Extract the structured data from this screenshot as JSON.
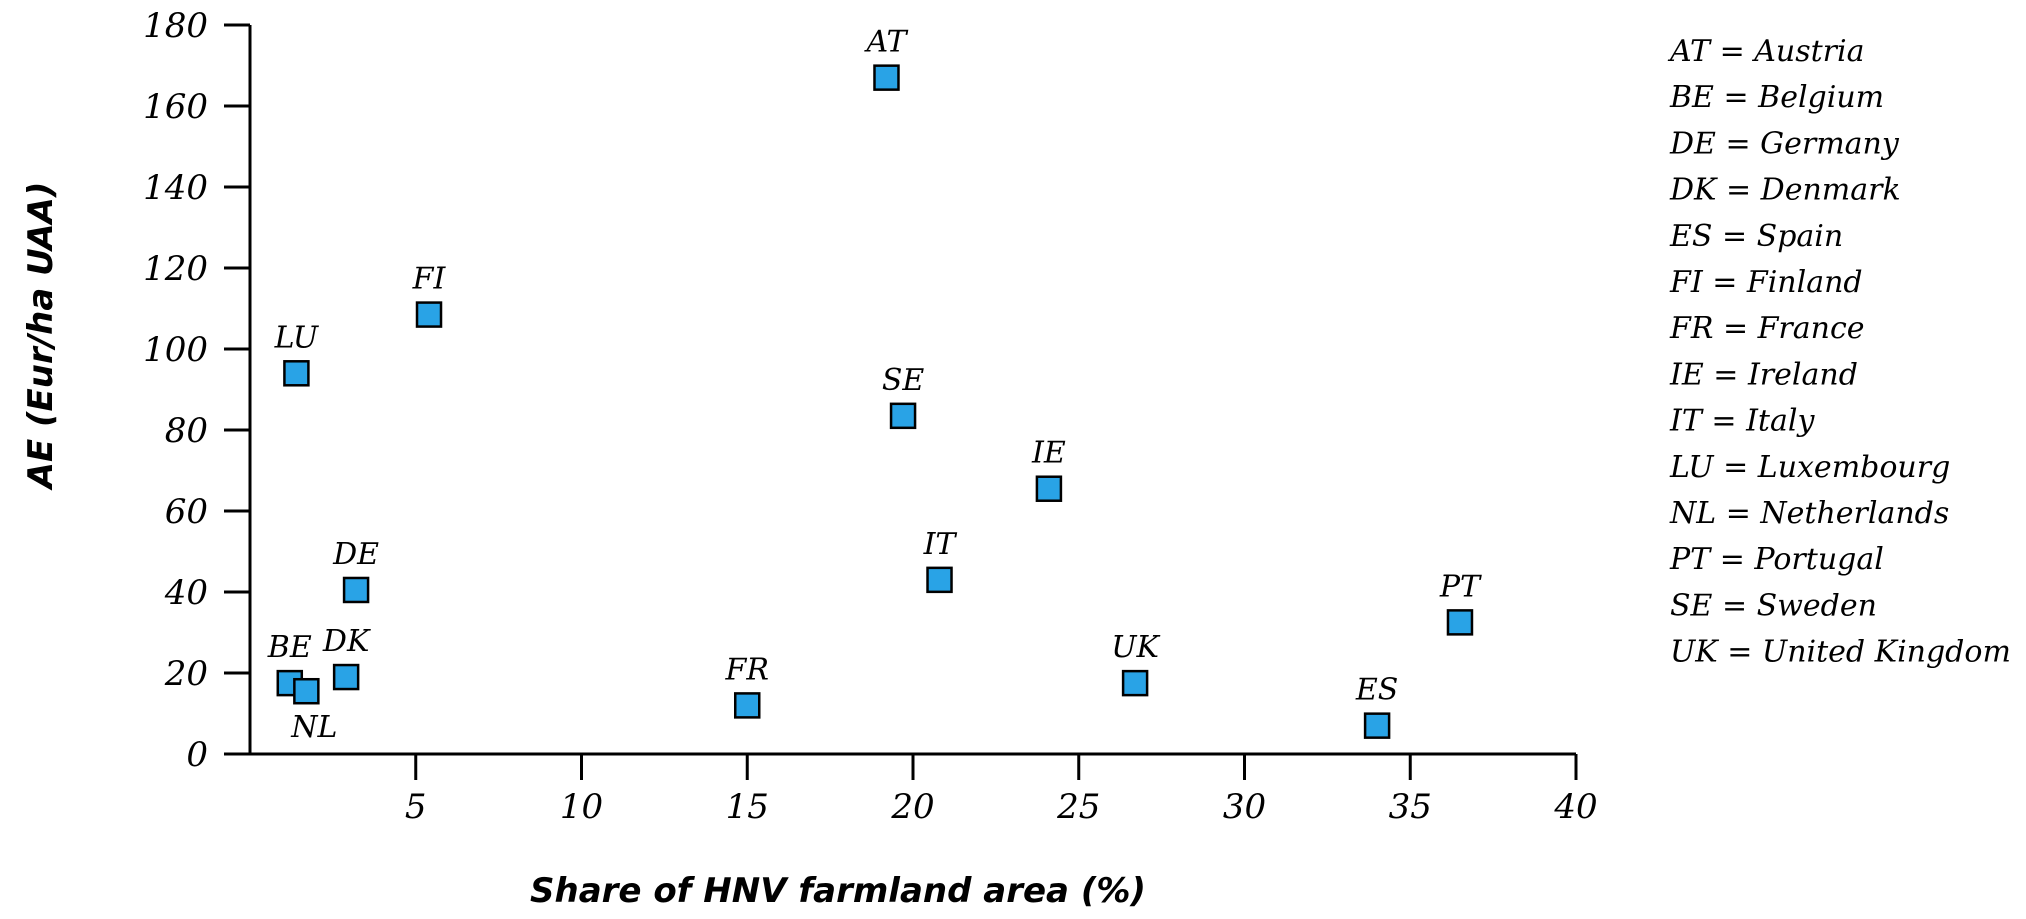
{
  "chart_data": {
    "type": "scatter",
    "xlabel": "Share of HNV farmland area (%)",
    "ylabel": "AE (Eur/ha UAA)",
    "xlim": [
      0,
      40
    ],
    "ylim": [
      0,
      180
    ],
    "x_ticks": [
      5,
      10,
      15,
      20,
      25,
      30,
      35,
      40
    ],
    "y_ticks": [
      0,
      20,
      40,
      60,
      80,
      100,
      120,
      140,
      160,
      180
    ],
    "grid": false,
    "legend_placement": "right",
    "marker_color": "#29a3e6",
    "points": [
      {
        "label": "AT",
        "x": 19.2,
        "y": 167,
        "label_pos": "above"
      },
      {
        "label": "FI",
        "x": 5.4,
        "y": 108.5,
        "label_pos": "above"
      },
      {
        "label": "LU",
        "x": 1.4,
        "y": 94,
        "label_pos": "above"
      },
      {
        "label": "SE",
        "x": 19.7,
        "y": 83.5,
        "label_pos": "above"
      },
      {
        "label": "IE",
        "x": 24.1,
        "y": 65.5,
        "label_pos": "above"
      },
      {
        "label": "IT",
        "x": 20.8,
        "y": 43,
        "label_pos": "above"
      },
      {
        "label": "DE",
        "x": 3.2,
        "y": 40.5,
        "label_pos": "above"
      },
      {
        "label": "PT",
        "x": 36.5,
        "y": 32.5,
        "label_pos": "above"
      },
      {
        "label": "DK",
        "x": 2.9,
        "y": 19,
        "label_pos": "above"
      },
      {
        "label": "BE",
        "x": 1.2,
        "y": 17.5,
        "label_pos": "above"
      },
      {
        "label": "NL",
        "x": 1.7,
        "y": 15.5,
        "label_pos": "below"
      },
      {
        "label": "UK",
        "x": 26.7,
        "y": 17.5,
        "label_pos": "above"
      },
      {
        "label": "FR",
        "x": 15.0,
        "y": 12,
        "label_pos": "above"
      },
      {
        "label": "ES",
        "x": 34.0,
        "y": 7,
        "label_pos": "above"
      }
    ],
    "legend": [
      "AT = Austria",
      "BE = Belgium",
      "DE = Germany",
      "DK = Denmark",
      "ES = Spain",
      "FI = Finland",
      "FR = France",
      "IE = Ireland",
      "IT = Italy",
      "LU = Luxembourg",
      "NL = Netherlands",
      "PT = Portugal",
      "SE = Sweden",
      "UK = United Kingdom"
    ]
  }
}
